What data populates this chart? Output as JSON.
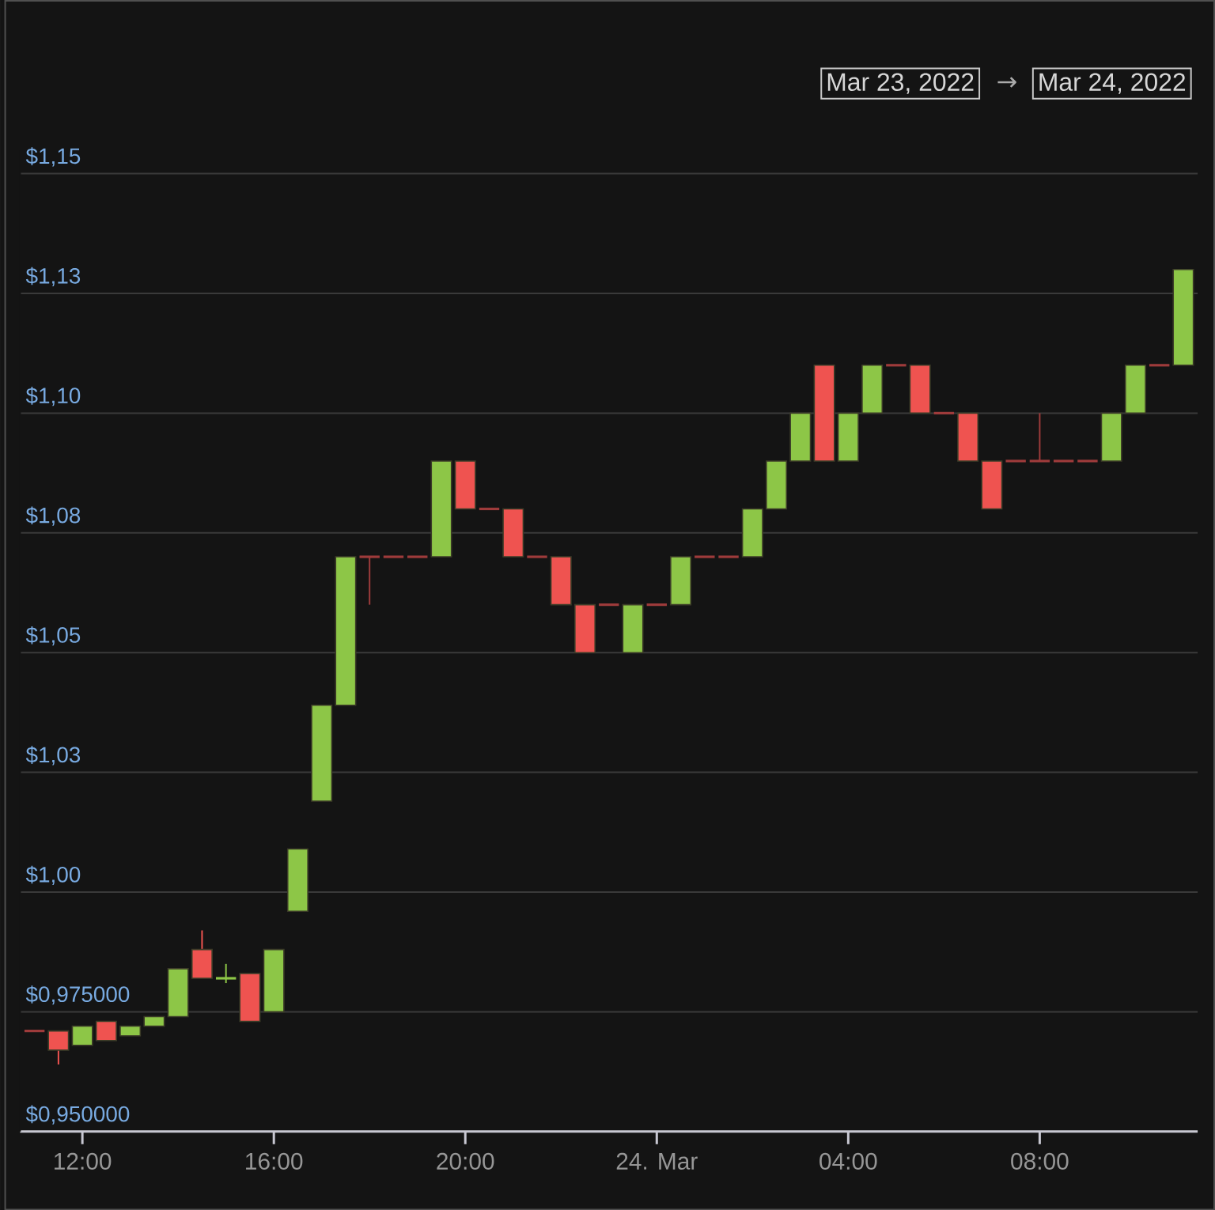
{
  "chart_data": {
    "type": "candlestick",
    "annotations": [
      "Mar 23, 2022",
      "→",
      "Mar 24, 2022"
    ],
    "x": [
      "2022-03-23T11:00",
      "2022-03-23T11:30",
      "2022-03-23T12:00",
      "2022-03-23T12:30",
      "2022-03-23T13:00",
      "2022-03-23T13:30",
      "2022-03-23T14:00",
      "2022-03-23T14:30",
      "2022-03-23T15:00",
      "2022-03-23T15:30",
      "2022-03-23T16:00",
      "2022-03-23T16:30",
      "2022-03-23T17:00",
      "2022-03-23T17:30",
      "2022-03-23T18:00",
      "2022-03-23T18:30",
      "2022-03-23T19:00",
      "2022-03-23T19:30",
      "2022-03-23T20:00",
      "2022-03-23T20:30",
      "2022-03-23T21:00",
      "2022-03-23T21:30",
      "2022-03-23T22:00",
      "2022-03-23T22:30",
      "2022-03-23T23:00",
      "2022-03-23T23:30",
      "2022-03-24T00:00",
      "2022-03-24T00:30",
      "2022-03-24T01:00",
      "2022-03-24T01:30",
      "2022-03-24T02:00",
      "2022-03-24T02:30",
      "2022-03-24T03:00",
      "2022-03-24T03:30",
      "2022-03-24T04:00",
      "2022-03-24T04:30",
      "2022-03-24T05:00",
      "2022-03-24T05:30",
      "2022-03-24T06:00",
      "2022-03-24T06:30",
      "2022-03-24T07:00",
      "2022-03-24T07:30",
      "2022-03-24T08:00",
      "2022-03-24T08:30",
      "2022-03-24T09:00",
      "2022-03-24T09:30",
      "2022-03-24T10:00",
      "2022-03-24T10:30",
      "2022-03-24T11:00"
    ],
    "ohlc": [
      [
        0.971,
        0.971,
        0.971,
        0.971
      ],
      [
        0.971,
        0.971,
        0.964,
        0.967
      ],
      [
        0.968,
        0.972,
        0.968,
        0.972
      ],
      [
        0.973,
        0.973,
        0.969,
        0.969
      ],
      [
        0.97,
        0.972,
        0.97,
        0.972
      ],
      [
        0.972,
        0.974,
        0.972,
        0.974
      ],
      [
        0.974,
        0.984,
        0.974,
        0.984
      ],
      [
        0.988,
        0.992,
        0.982,
        0.982
      ],
      [
        0.982,
        0.985,
        0.981,
        0.982
      ],
      [
        0.983,
        0.983,
        0.973,
        0.973
      ],
      [
        0.975,
        0.988,
        0.975,
        0.988
      ],
      [
        0.996,
        1.009,
        0.996,
        1.009
      ],
      [
        1.019,
        1.039,
        1.019,
        1.039
      ],
      [
        1.039,
        1.07,
        1.039,
        1.07
      ],
      [
        1.07,
        1.07,
        1.06,
        1.07
      ],
      [
        1.07,
        1.07,
        1.07,
        1.07
      ],
      [
        1.07,
        1.07,
        1.07,
        1.07
      ],
      [
        1.07,
        1.09,
        1.07,
        1.09
      ],
      [
        1.09,
        1.09,
        1.08,
        1.08
      ],
      [
        1.08,
        1.08,
        1.08,
        1.08
      ],
      [
        1.08,
        1.08,
        1.07,
        1.07
      ],
      [
        1.07,
        1.07,
        1.07,
        1.07
      ],
      [
        1.07,
        1.07,
        1.06,
        1.06
      ],
      [
        1.06,
        1.06,
        1.05,
        1.05
      ],
      [
        1.06,
        1.06,
        1.06,
        1.06
      ],
      [
        1.05,
        1.06,
        1.05,
        1.06
      ],
      [
        1.06,
        1.06,
        1.06,
        1.06
      ],
      [
        1.06,
        1.07,
        1.06,
        1.07
      ],
      [
        1.07,
        1.07,
        1.07,
        1.07
      ],
      [
        1.07,
        1.07,
        1.07,
        1.07
      ],
      [
        1.07,
        1.08,
        1.07,
        1.08
      ],
      [
        1.08,
        1.09,
        1.08,
        1.09
      ],
      [
        1.09,
        1.1,
        1.09,
        1.1
      ],
      [
        1.11,
        1.11,
        1.09,
        1.09
      ],
      [
        1.09,
        1.1,
        1.09,
        1.1
      ],
      [
        1.1,
        1.11,
        1.1,
        1.11
      ],
      [
        1.11,
        1.11,
        1.11,
        1.11
      ],
      [
        1.11,
        1.11,
        1.1,
        1.1
      ],
      [
        1.1,
        1.1,
        1.1,
        1.1
      ],
      [
        1.1,
        1.1,
        1.09,
        1.09
      ],
      [
        1.09,
        1.09,
        1.08,
        1.08
      ],
      [
        1.09,
        1.09,
        1.09,
        1.09
      ],
      [
        1.09,
        1.1,
        1.09,
        1.09
      ],
      [
        1.09,
        1.09,
        1.09,
        1.09
      ],
      [
        1.09,
        1.09,
        1.09,
        1.09
      ],
      [
        1.09,
        1.1,
        1.09,
        1.1
      ],
      [
        1.1,
        1.11,
        1.1,
        1.11
      ],
      [
        1.11,
        1.11,
        1.11,
        1.11
      ],
      [
        1.11,
        1.13,
        1.11,
        1.13
      ]
    ],
    "colors": [
      "#9e3b3b",
      "#ef5350",
      "#8dc647",
      "#ef5350",
      "#8dc647",
      "#8dc647",
      "#8dc647",
      "#ef5350",
      "#8dc647",
      "#ef5350",
      "#8dc647",
      "#8dc647",
      "#8dc647",
      "#8dc647",
      "#9e3b3b",
      "#9e3b3b",
      "#9e3b3b",
      "#8dc647",
      "#ef5350",
      "#9e3b3b",
      "#ef5350",
      "#9e3b3b",
      "#ef5350",
      "#ef5350",
      "#9e3b3b",
      "#8dc647",
      "#9e3b3b",
      "#8dc647",
      "#9e3b3b",
      "#9e3b3b",
      "#8dc647",
      "#8dc647",
      "#8dc647",
      "#ef5350",
      "#8dc647",
      "#8dc647",
      "#9e3b3b",
      "#ef5350",
      "#9e3b3b",
      "#ef5350",
      "#ef5350",
      "#9e3b3b",
      "#9e3b3b",
      "#9e3b3b",
      "#9e3b3b",
      "#8dc647",
      "#8dc647",
      "#9e3b3b",
      "#8dc647"
    ],
    "xlim": [
      "2022-03-23T10:42",
      "2022-03-24T11:18"
    ],
    "xticks": [
      {
        "value": "2022-03-23T12:00",
        "label": "12:00"
      },
      {
        "value": "2022-03-23T16:00",
        "label": "16:00"
      },
      {
        "value": "2022-03-23T20:00",
        "label": "20:00"
      },
      {
        "value": "2022-03-24T00:00",
        "label": "24. Mar"
      },
      {
        "value": "2022-03-24T04:00",
        "label": "04:00"
      },
      {
        "value": "2022-03-24T08:00",
        "label": "08:00"
      }
    ],
    "ylim": [
      0.95,
      1.155
    ],
    "yticks": [
      {
        "value": 0.95,
        "label": "$0,950000"
      },
      {
        "value": 0.975,
        "label": "$0,975000"
      },
      {
        "value": 1.0,
        "label": "$1,00"
      },
      {
        "value": 1.025,
        "label": "$1,03"
      },
      {
        "value": 1.05,
        "label": "$1,05"
      },
      {
        "value": 1.075,
        "label": "$1,08"
      },
      {
        "value": 1.1,
        "label": "$1,10"
      },
      {
        "value": 1.125,
        "label": "$1,13"
      },
      {
        "value": 1.15,
        "label": "$1,15"
      }
    ],
    "grid": "y"
  }
}
